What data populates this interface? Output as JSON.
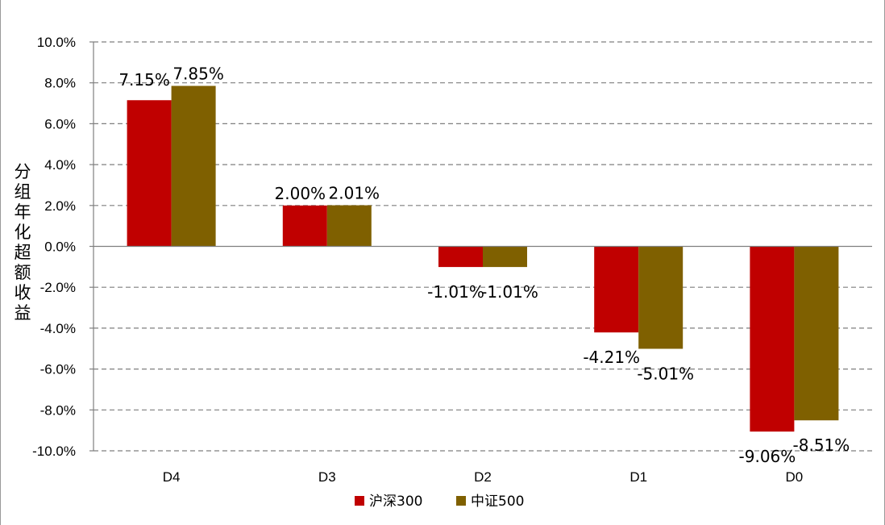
{
  "chart_data": {
    "type": "bar",
    "title": "",
    "xlabel": "",
    "ylabel": "分组年化超额收益",
    "categories": [
      "D4",
      "D3",
      "D2",
      "D1",
      "D0"
    ],
    "series": [
      {
        "name": "沪深300",
        "values": [
          7.15,
          2.0,
          -1.01,
          -4.21,
          -9.06
        ],
        "labels": [
          "7.15%",
          "2.00%",
          "-1.01%",
          "-4.21%",
          "-9.06%"
        ],
        "color": "#c00000"
      },
      {
        "name": "中证500",
        "values": [
          7.85,
          2.01,
          -1.01,
          -5.01,
          -8.51
        ],
        "labels": [
          "7.85%",
          "2.01%",
          "-1.01%",
          "-5.01%",
          "-8.51%"
        ],
        "color": "#7f6000"
      }
    ],
    "ylim": [
      -10,
      10
    ],
    "yticks": [
      10,
      8,
      6,
      4,
      2,
      0,
      -2,
      -4,
      -6,
      -8,
      -10
    ],
    "ytick_labels": [
      "10.0%",
      "8.0%",
      "6.0%",
      "4.0%",
      "2.0%",
      "0.0%",
      "-2.0%",
      "-4.0%",
      "-6.0%",
      "-8.0%",
      "-10.0%"
    ],
    "grid": true,
    "legend_position": "bottom"
  }
}
